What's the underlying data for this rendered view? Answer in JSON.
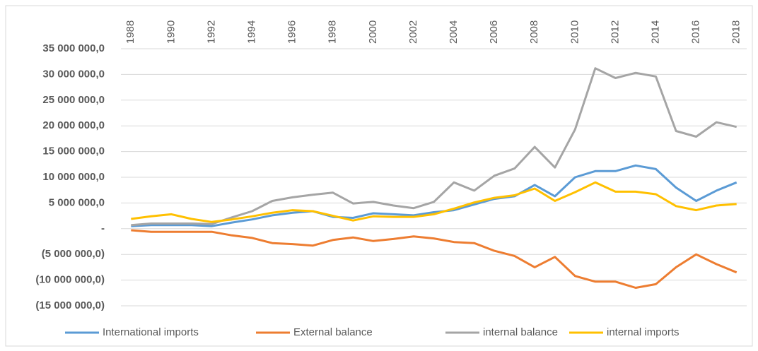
{
  "chart_data": {
    "type": "line",
    "categories": [
      "1988",
      null,
      "1990",
      null,
      "1992",
      null,
      "1994",
      null,
      "1996",
      null,
      "1998",
      null,
      "2000",
      null,
      "2002",
      null,
      "2004",
      null,
      "2006",
      null,
      "2008",
      null,
      "2010",
      null,
      "2012",
      null,
      "2014",
      null,
      "2016",
      null,
      "2018"
    ],
    "series": [
      {
        "name": "International imports",
        "color": "#5b9bd5",
        "values": [
          500000,
          700000,
          700000,
          700000,
          500000,
          1200000,
          1800000,
          2600000,
          3100000,
          3400000,
          2300000,
          2100000,
          3000000,
          2800000,
          2600000,
          3200000,
          3600000,
          4700000,
          5800000,
          6300000,
          8500000,
          6300000,
          10000000,
          11200000,
          11200000,
          12300000,
          11600000,
          8000000,
          5400000,
          7400000,
          9000000
        ]
      },
      {
        "name": "External balance",
        "color": "#ed7d31",
        "values": [
          -300000,
          -600000,
          -600000,
          -600000,
          -600000,
          -1300000,
          -1800000,
          -2800000,
          -3000000,
          -3300000,
          -2200000,
          -1700000,
          -2400000,
          -2000000,
          -1500000,
          -1900000,
          -2600000,
          -2800000,
          -4300000,
          -5300000,
          -7500000,
          -5500000,
          -9200000,
          -10300000,
          -10300000,
          -11500000,
          -10800000,
          -7500000,
          -5000000,
          -6900000,
          -8500000
        ]
      },
      {
        "name": "internal balance",
        "color": "#a5a5a5",
        "values": [
          700000,
          1000000,
          1000000,
          1000000,
          900000,
          2200000,
          3400000,
          5400000,
          6100000,
          6600000,
          7000000,
          4900000,
          5200000,
          4500000,
          4000000,
          5200000,
          9000000,
          7400000,
          10300000,
          11700000,
          15900000,
          11900000,
          19300000,
          31200000,
          29300000,
          30300000,
          29600000,
          19000000,
          17900000,
          20700000,
          19800000
        ]
      },
      {
        "name": "internal imports",
        "color": "#ffc000",
        "values": [
          1900000,
          2400000,
          2800000,
          1900000,
          1300000,
          1800000,
          2400000,
          3100000,
          3600000,
          3400000,
          2500000,
          1600000,
          2400000,
          2300000,
          2300000,
          2800000,
          3900000,
          5100000,
          6000000,
          6500000,
          7800000,
          5400000,
          7100000,
          9000000,
          7200000,
          7200000,
          6700000,
          4400000,
          3600000,
          4500000,
          4800000
        ]
      }
    ],
    "ylim": [
      -15000000,
      35000000
    ],
    "yticks": [
      {
        "value": -15000000,
        "label": "(15 000 000,0)"
      },
      {
        "value": -10000000,
        "label": "(10 000 000,0)"
      },
      {
        "value": -5000000,
        "label": "(5 000 000,0)"
      },
      {
        "value": 0,
        "label": "-"
      },
      {
        "value": 5000000,
        "label": "5 000 000,0"
      },
      {
        "value": 10000000,
        "label": "10 000 000,0"
      },
      {
        "value": 15000000,
        "label": "15 000 000,0"
      },
      {
        "value": 20000000,
        "label": "20 000 000,0"
      },
      {
        "value": 25000000,
        "label": "25 000 000,0"
      },
      {
        "value": 30000000,
        "label": "30 000 000,0"
      },
      {
        "value": 35000000,
        "label": "35 000 000,0"
      }
    ],
    "grid": true,
    "legend": "bottom"
  }
}
